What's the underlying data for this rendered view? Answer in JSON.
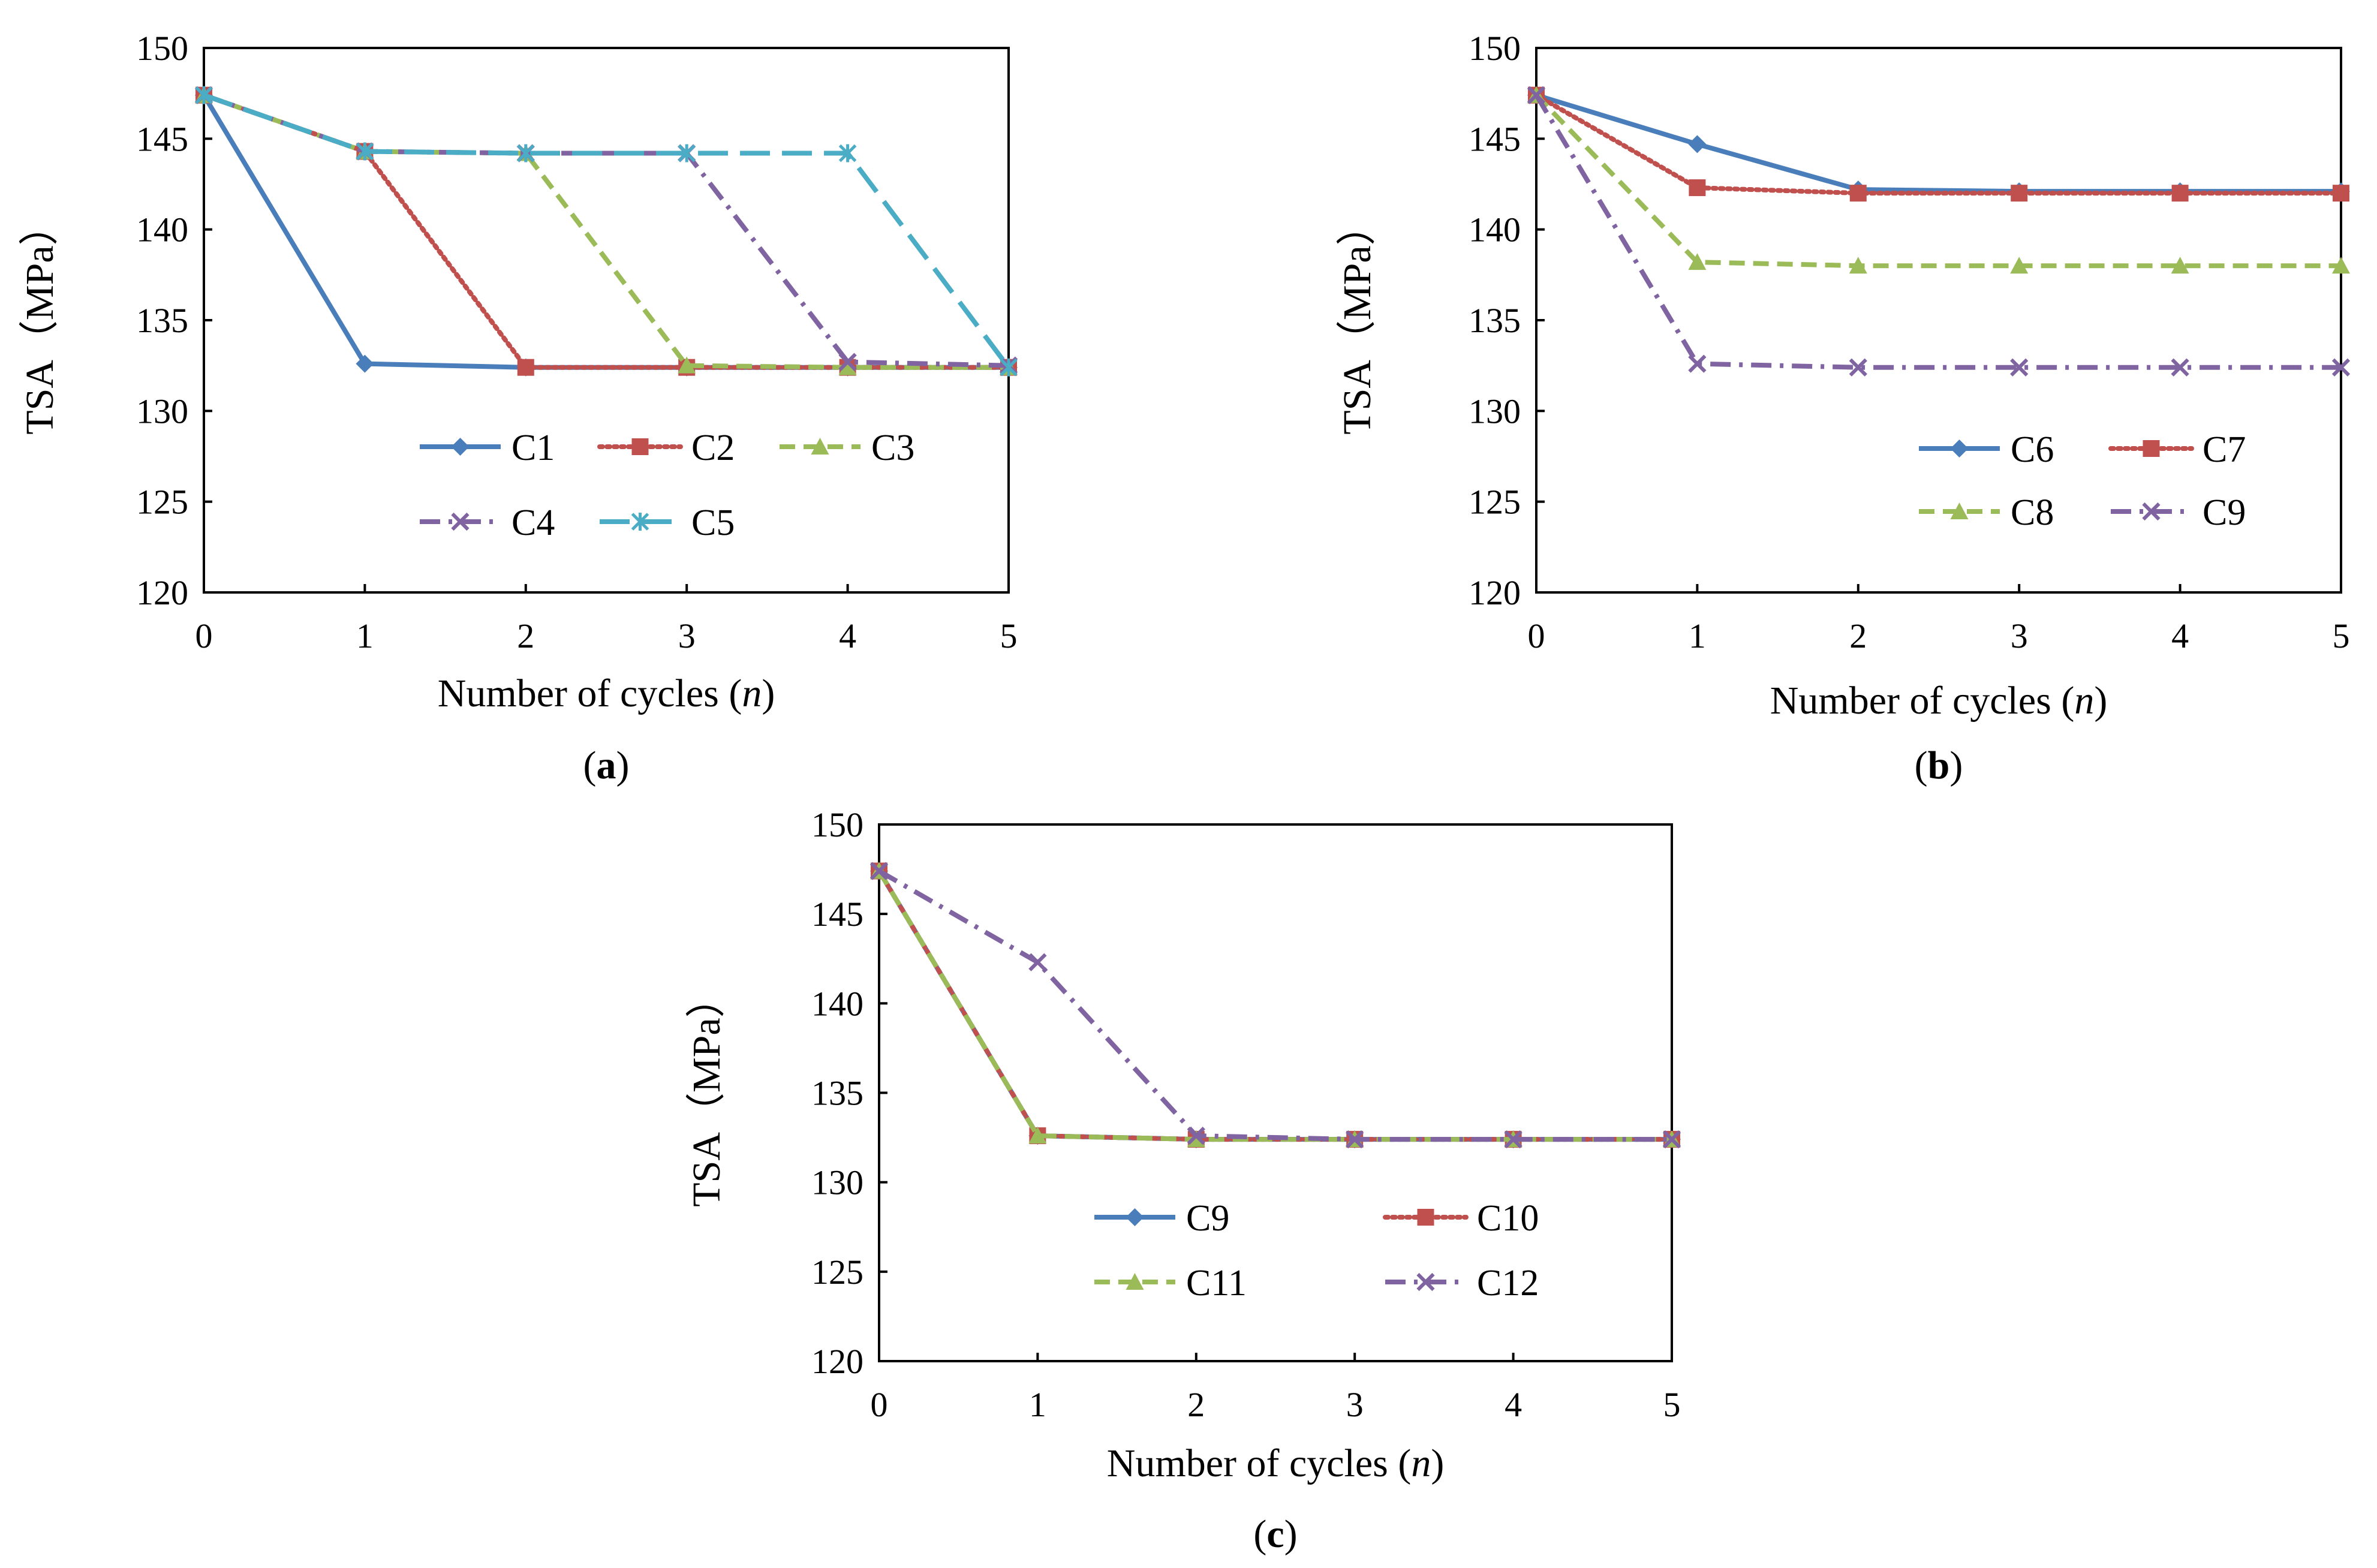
{
  "chart_data": [
    {
      "type": "line",
      "panel_label": "a",
      "xlabel": "Number of cycles",
      "xlabel_var": "n",
      "ylabel": "TSA（MPa）",
      "x": [
        0,
        1,
        2,
        3,
        4,
        5
      ],
      "xlim": [
        0,
        5
      ],
      "ylim": [
        120,
        150
      ],
      "yticks": [
        120,
        125,
        130,
        135,
        140,
        145,
        150
      ],
      "grid": false,
      "legend_position": "lower-center",
      "series": [
        {
          "name": "C1",
          "values": [
            147.4,
            132.6,
            132.4,
            132.4,
            132.4,
            132.4
          ],
          "color": "#4A7EBB",
          "dash": "solid",
          "marker": "diamond"
        },
        {
          "name": "C2",
          "values": [
            147.4,
            144.3,
            132.4,
            132.4,
            132.4,
            132.4
          ],
          "color": "#C0504D",
          "dash": "dot",
          "marker": "square"
        },
        {
          "name": "C3",
          "values": [
            147.4,
            144.3,
            144.2,
            132.5,
            132.4,
            132.4
          ],
          "color": "#9BBB59",
          "dash": "dash",
          "marker": "triangle"
        },
        {
          "name": "C4",
          "values": [
            147.4,
            144.3,
            144.2,
            144.2,
            132.7,
            132.5
          ],
          "color": "#8064A2",
          "dash": "dashdot",
          "marker": "x"
        },
        {
          "name": "C5",
          "values": [
            147.4,
            144.3,
            144.2,
            144.2,
            144.2,
            132.4
          ],
          "color": "#4BACC6",
          "dash": "longdash",
          "marker": "asterisk"
        }
      ]
    },
    {
      "type": "line",
      "panel_label": "b",
      "xlabel": "Number of cycles",
      "xlabel_var": "n",
      "ylabel": "TSA（MPa）",
      "x": [
        0,
        1,
        2,
        3,
        4,
        5
      ],
      "xlim": [
        0,
        5
      ],
      "ylim": [
        120,
        150
      ],
      "yticks": [
        120,
        125,
        130,
        135,
        140,
        145,
        150
      ],
      "grid": false,
      "legend_position": "lower-right",
      "series": [
        {
          "name": "C6",
          "values": [
            147.4,
            144.7,
            142.2,
            142.1,
            142.1,
            142.1
          ],
          "color": "#4A7EBB",
          "dash": "solid",
          "marker": "diamond"
        },
        {
          "name": "C7",
          "values": [
            147.4,
            142.3,
            142.0,
            142.0,
            142.0,
            142.0
          ],
          "color": "#C0504D",
          "dash": "dot",
          "marker": "square"
        },
        {
          "name": "C8",
          "values": [
            147.4,
            138.2,
            138.0,
            138.0,
            138.0,
            138.0
          ],
          "color": "#9BBB59",
          "dash": "dash",
          "marker": "triangle"
        },
        {
          "name": "C9",
          "values": [
            147.4,
            132.6,
            132.4,
            132.4,
            132.4,
            132.4
          ],
          "color": "#8064A2",
          "dash": "dashdot",
          "marker": "x"
        }
      ]
    },
    {
      "type": "line",
      "panel_label": "c",
      "xlabel": "Number of cycles",
      "xlabel_var": "n",
      "ylabel": "TSA（MPa）",
      "x": [
        0,
        1,
        2,
        3,
        4,
        5
      ],
      "xlim": [
        0,
        5
      ],
      "ylim": [
        120,
        150
      ],
      "yticks": [
        120,
        125,
        130,
        135,
        140,
        145,
        150
      ],
      "grid": false,
      "legend_position": "lower-center",
      "series": [
        {
          "name": "C9",
          "values": [
            147.4,
            132.6,
            132.4,
            132.4,
            132.4,
            132.4
          ],
          "color": "#4A7EBB",
          "dash": "solid",
          "marker": "diamond"
        },
        {
          "name": "C10",
          "values": [
            147.4,
            132.6,
            132.4,
            132.4,
            132.4,
            132.4
          ],
          "color": "#C0504D",
          "dash": "dot",
          "marker": "square"
        },
        {
          "name": "C11",
          "values": [
            147.4,
            132.6,
            132.4,
            132.4,
            132.4,
            132.4
          ],
          "color": "#9BBB59",
          "dash": "dash",
          "marker": "triangle"
        },
        {
          "name": "C12",
          "values": [
            147.4,
            142.3,
            132.6,
            132.4,
            132.4,
            132.4
          ],
          "color": "#8064A2",
          "dash": "dashdot",
          "marker": "x"
        }
      ]
    }
  ]
}
